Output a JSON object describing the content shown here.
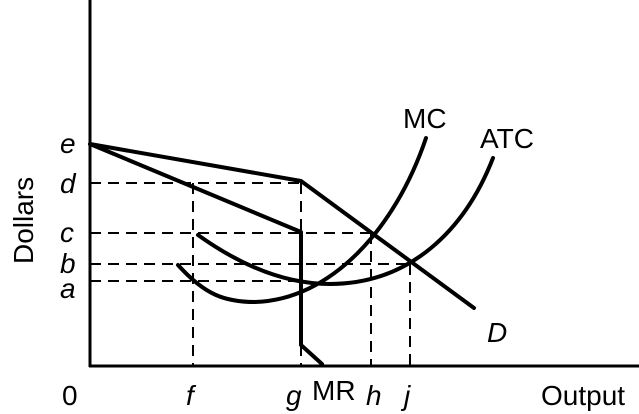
{
  "axes": {
    "y_label": "Dollars",
    "x_label": "Output",
    "origin": "0"
  },
  "price_levels": [
    "e",
    "d",
    "c",
    "b",
    "a"
  ],
  "quantity_levels": [
    "f",
    "g",
    "h",
    "j"
  ],
  "curves": {
    "mc": "MC",
    "atc": "ATC",
    "demand": "D",
    "mr": "MR"
  }
}
